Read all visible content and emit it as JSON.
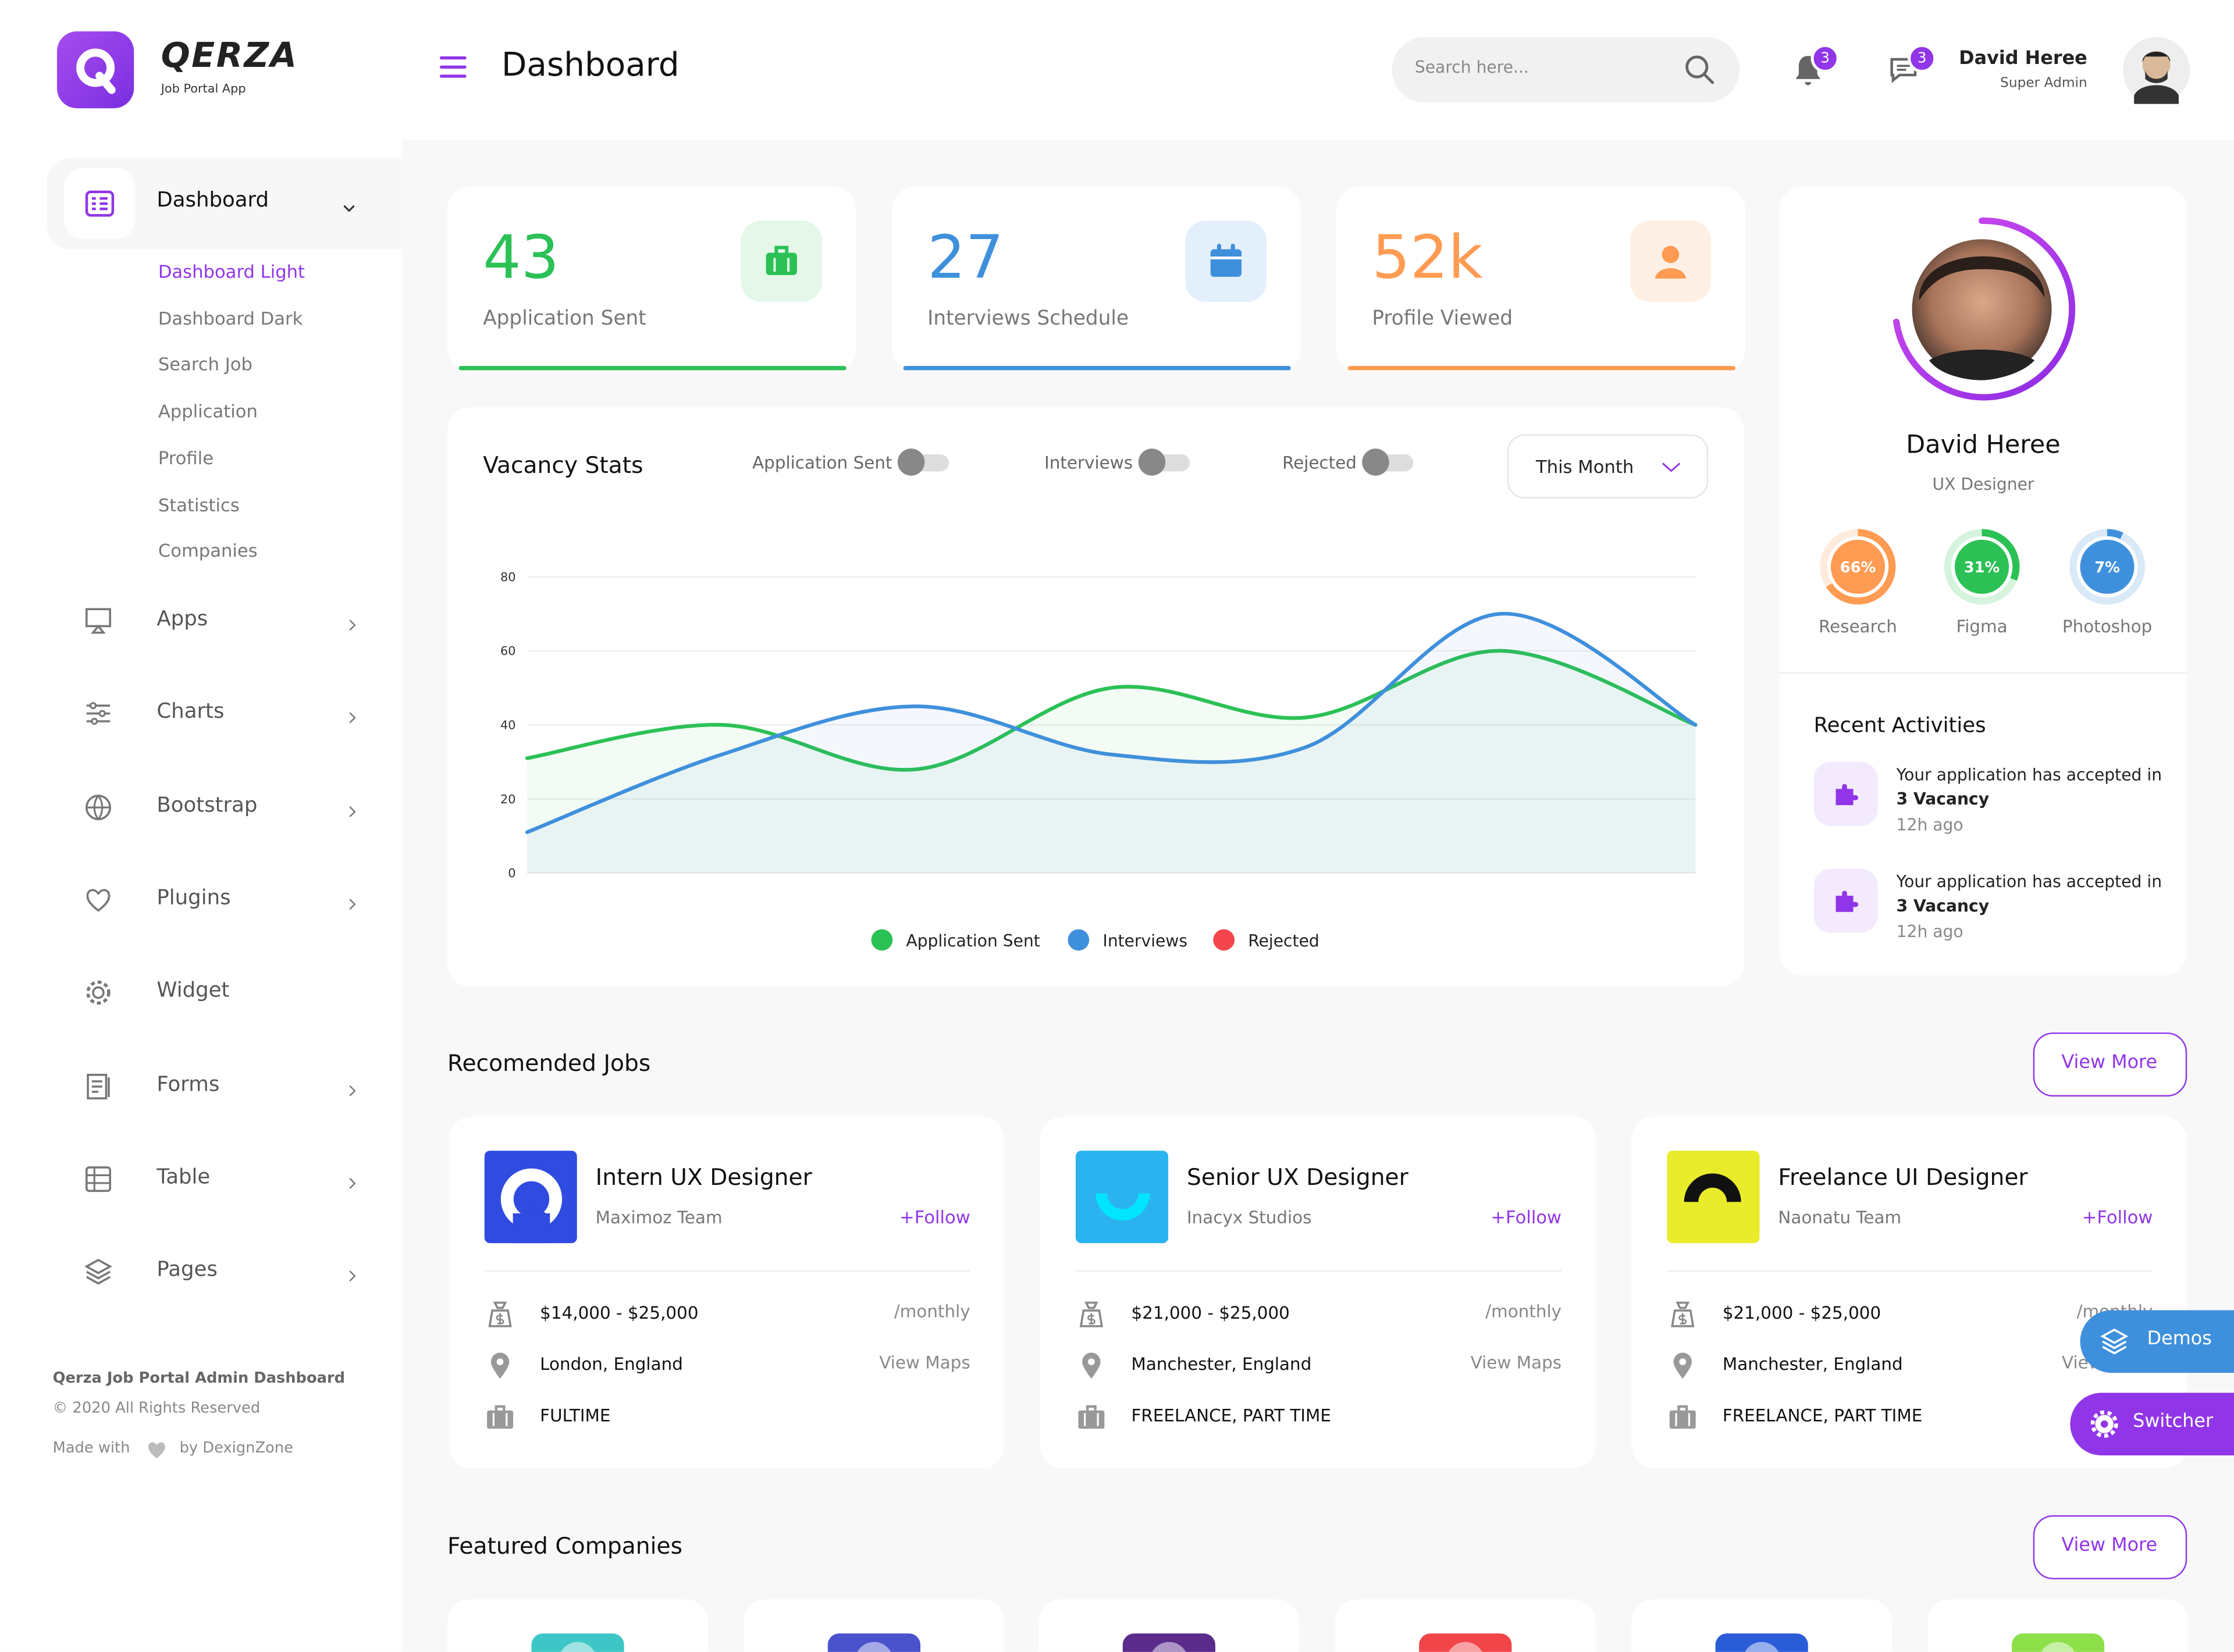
{
  "brand": {
    "name": "QERZA",
    "tagline": "Job Portal App"
  },
  "header": {
    "title": "Dashboard",
    "search_placeholder": "Search here...",
    "notification_count": "3",
    "message_count": "3",
    "user_name": "David Heree",
    "user_role": "Super Admin"
  },
  "sidebar": {
    "menu": [
      {
        "label": "Dashboard",
        "submenu": [
          "Dashboard Light",
          "Dashboard Dark",
          "Search Job",
          "Application",
          "Profile",
          "Statistics",
          "Companies"
        ]
      },
      {
        "label": "Apps"
      },
      {
        "label": "Charts"
      },
      {
        "label": "Bootstrap"
      },
      {
        "label": "Plugins"
      },
      {
        "label": "Widget"
      },
      {
        "label": "Forms"
      },
      {
        "label": "Table"
      },
      {
        "label": "Pages"
      }
    ],
    "footer": {
      "title": "Qerza Job Portal Admin Dashboard",
      "copyright": "© 2020 All Rights Reserved",
      "made_with": "Made with",
      "by": "by DexignZone"
    }
  },
  "stats": [
    {
      "value": "43",
      "label": "Application Sent",
      "color": "#2bc155"
    },
    {
      "value": "27",
      "label": "Interviews Schedule",
      "color": "#3f90dc"
    },
    {
      "value": "52k",
      "label": "Profile Viewed",
      "color": "#ff9b52"
    }
  ],
  "chart_data": {
    "type": "line",
    "title": "Vacancy Stats",
    "toggles": [
      "Application Sent",
      "Interviews",
      "Rejected"
    ],
    "period": "This Month",
    "categories": [
      null,
      null,
      null,
      null,
      null,
      null,
      null
    ],
    "series": [
      {
        "name": "Application Sent",
        "color": "#2bc155",
        "values": [
          31,
          40,
          28,
          50,
          42,
          60,
          40
        ]
      },
      {
        "name": "Interviews",
        "color": "#3f90dc",
        "values": [
          11,
          32,
          45,
          32,
          34,
          70,
          40
        ]
      },
      {
        "name": "Rejected",
        "color": "#f5454c",
        "values": [
          null,
          null,
          null,
          null,
          null,
          null,
          null
        ]
      }
    ],
    "ylim": [
      0,
      80
    ],
    "yticks": [
      0,
      20,
      40,
      60,
      80
    ],
    "grid": true,
    "legend": "bottom"
  },
  "profile": {
    "name": "David Heree",
    "role": "UX Designer",
    "skills": [
      {
        "name": "Research",
        "value": 66,
        "value_label": "66%",
        "color": "#ff9b52"
      },
      {
        "name": "Figma",
        "value": 31,
        "value_label": "31%",
        "color": "#2bc155"
      },
      {
        "name": "Photoshop",
        "value": 7,
        "value_label": "7%",
        "color": "#3f90dc"
      }
    ]
  },
  "recent_activities": {
    "title": "Recent Activities",
    "items": [
      {
        "text": "Your application has accepted in",
        "highlight": "3 Vacancy",
        "time": "12h ago"
      },
      {
        "text": "Your application has accepted in",
        "highlight": "3 Vacancy",
        "time": "12h ago"
      }
    ]
  },
  "recommended_jobs": {
    "title": "Recomended Jobs",
    "view_more": "View More",
    "jobs": [
      {
        "title": "Intern UX Designer",
        "company": "Maximoz Team",
        "follow": "+Follow",
        "salary": "$14,000 - $25,000",
        "period": "/monthly",
        "location": "London, England",
        "maps": "View Maps",
        "job_type": "FULTIME"
      },
      {
        "title": "Senior UX Designer",
        "company": "Inacyx Studios",
        "follow": "+Follow",
        "salary": "$21,000 - $25,000",
        "period": "/monthly",
        "location": "Manchester, England",
        "maps": "View Maps",
        "job_type": "FREELANCE, PART TIME"
      },
      {
        "title": "Freelance UI Designer",
        "company": "Naonatu Team",
        "follow": "+Follow",
        "salary": "$21,000 - $25,000",
        "period": "/monthly",
        "location": "Manchester, England",
        "maps": "View Maps",
        "job_type": "FREELANCE, PART TIME"
      }
    ]
  },
  "featured_companies": {
    "title": "Featured Companies",
    "view_more": "View More"
  },
  "floating": {
    "demos": "Demos",
    "switcher": "Switcher"
  }
}
